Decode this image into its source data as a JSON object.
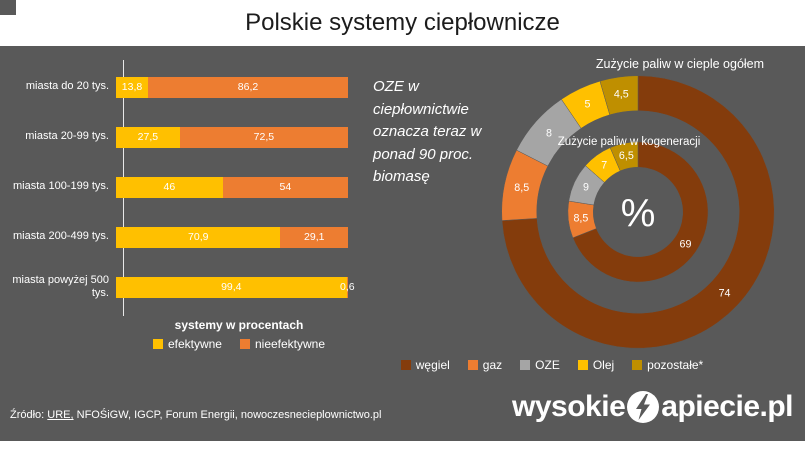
{
  "title": "Polskie systemy ciepłownicze",
  "insight_text": "OZE w ciepłownictwie oznacza teraz w ponad 90 proc. biomasę",
  "source": {
    "prefix": "Źródło: ",
    "link": "URE,",
    "rest": " NFOŚiGW, IGCP, Forum Energii, nowoczesnecieplownictwo.pl"
  },
  "logo": {
    "part1": "wysokie",
    "part2": "apiecie.pl"
  },
  "colors": {
    "background": "#595959",
    "title_bar": "#FFFFFF",
    "efektywne": "#FFC000",
    "nieefektywne": "#ED7D31"
  },
  "chart_data": [
    {
      "type": "bar",
      "orientation": "horizontal",
      "stacked": true,
      "title": "",
      "xlabel": "systemy w procentach",
      "xlim": [
        0,
        100
      ],
      "categories": [
        "miasta do 20 tys.",
        "miasta 20-99 tys.",
        "miasta 100-199 tys.",
        "miasta 200-499 tys.",
        "miasta powyżej 500 tys."
      ],
      "series": [
        {
          "name": "efektywne",
          "color": "#FFC000",
          "values": [
            13.8,
            27.5,
            46,
            70.9,
            99.4
          ],
          "labels": [
            "13,8",
            "27,5",
            "46",
            "70,9",
            "99,4"
          ]
        },
        {
          "name": "nieefektywne",
          "color": "#ED7D31",
          "values": [
            86.2,
            72.5,
            54,
            29.1,
            0.6
          ],
          "labels": [
            "86,2",
            "72,5",
            "54",
            "29,1",
            "0,6"
          ]
        }
      ],
      "legend_position": "bottom"
    },
    {
      "type": "pie",
      "subtype": "doughnut-two-rings",
      "title_outer": "Zużycie paliw w cieple ogółem",
      "title_inner": "Zużycie paliw w kogeneracji",
      "center_label": "%",
      "legend": [
        "węgiel",
        "gaz",
        "OZE",
        "Olej",
        "pozostałe*"
      ],
      "colors": [
        "#843C0C",
        "#ED7D31",
        "#A5A5A5",
        "#FFC000",
        "#BF8F00"
      ],
      "outer_ring_name": "Zużycie paliw w cieple ogółem",
      "outer_values": [
        74,
        8.5,
        8,
        5,
        4.5
      ],
      "outer_labels": [
        "74",
        "8,5",
        "8",
        "5",
        "4,5"
      ],
      "inner_ring_name": "Zużycie paliw w kogeneracji",
      "inner_values": [
        69,
        8.5,
        9,
        7,
        6.5
      ],
      "inner_labels": [
        "69",
        "8,5",
        "9",
        "7",
        "6,5"
      ],
      "legend_position": "bottom"
    }
  ]
}
